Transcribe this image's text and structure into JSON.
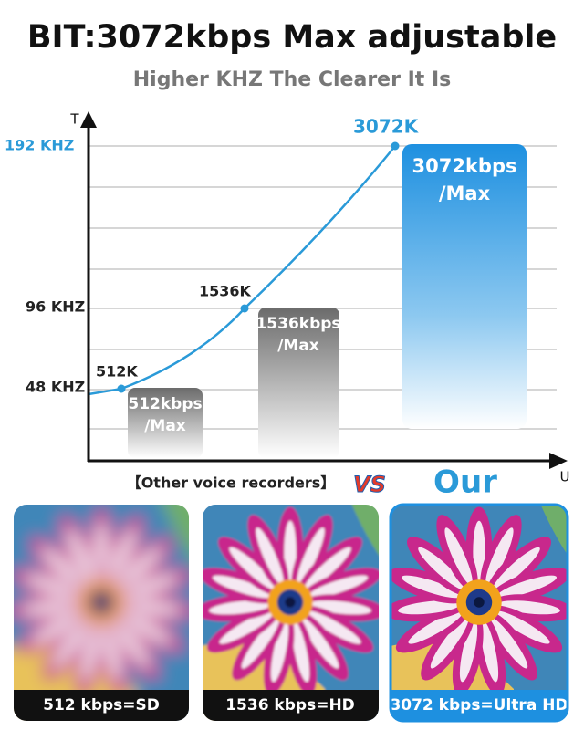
{
  "header": {
    "title": "BIT:3072kbps Max adjustable",
    "subtitle": "Higher KHZ The Clearer It Is"
  },
  "graph": {
    "y_axis_label": "T",
    "x_axis_label": "U",
    "y_labels": [
      "192 KHZ",
      "96 KHZ",
      "48 KHZ"
    ],
    "points": [
      "512K",
      "1536K",
      "3072K"
    ],
    "bars": [
      [
        "512kbps",
        "/Max"
      ],
      [
        "1536kbps",
        "/Max"
      ],
      [
        "3072kbps",
        "/Max"
      ]
    ]
  },
  "comparison": {
    "left": "【Other voice recorders】",
    "vs": "VS",
    "right": "Our"
  },
  "images": [
    {
      "caption": "512 kbps=SD"
    },
    {
      "caption": "1536 kbps=HD"
    },
    {
      "caption": "3072 kbps=Ultra HD"
    }
  ]
}
